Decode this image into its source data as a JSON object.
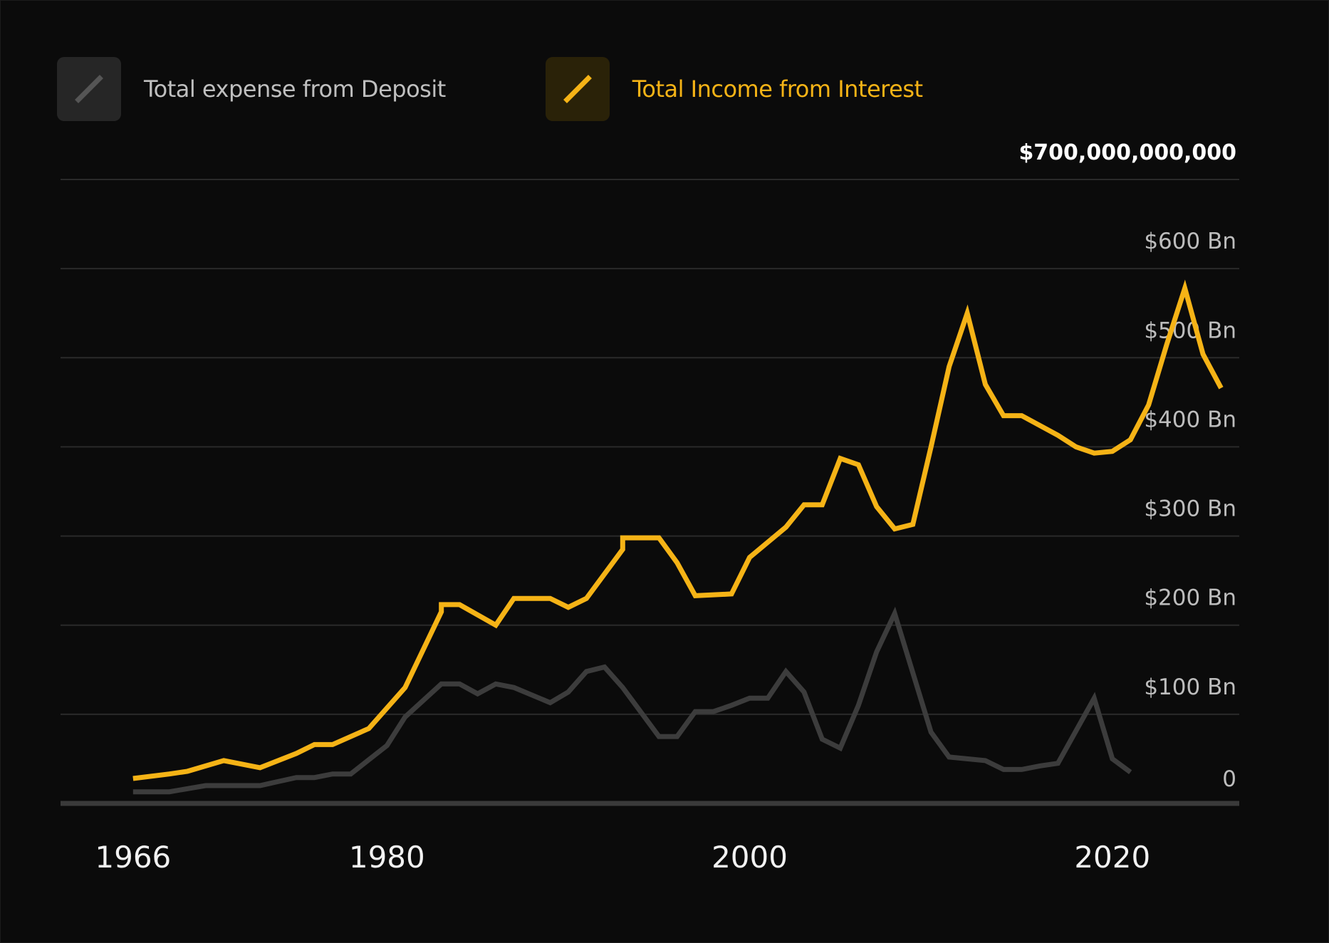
{
  "legend": {
    "expense_label": "Total expense from Deposit",
    "income_label": "Total Income from Interest"
  },
  "colors": {
    "background": "#0b0b0b",
    "expense": "#3c3c3c",
    "income": "#f5b316",
    "grid": "#2a2a2a",
    "baseline": "#3a3a3a"
  },
  "icons": {
    "expense_swatch": "diagonal-line-icon",
    "income_swatch": "diagonal-line-icon"
  },
  "chart_data": {
    "type": "line",
    "ylim": [
      0,
      700
    ],
    "xlim": [
      1962,
      2027
    ],
    "grid": true,
    "legend_position": "top-left",
    "y_axis_position": "right",
    "y_ticks": [
      {
        "value": 0,
        "label": "0"
      },
      {
        "value": 100,
        "label": "$100 Bn"
      },
      {
        "value": 200,
        "label": "$200 Bn"
      },
      {
        "value": 300,
        "label": "$300 Bn"
      },
      {
        "value": 400,
        "label": "$400 Bn"
      },
      {
        "value": 500,
        "label": "$500 Bn"
      },
      {
        "value": 600,
        "label": "$600 Bn"
      },
      {
        "value": 700,
        "label": "$700,000,000,000"
      }
    ],
    "x_ticks": [
      {
        "value": 1966,
        "label": "1966"
      },
      {
        "value": 1980,
        "label": "1980"
      },
      {
        "value": 2000,
        "label": "2000"
      },
      {
        "value": 2020,
        "label": "2020"
      }
    ],
    "series": [
      {
        "name": "Total Income from Interest",
        "color": "#f5b316",
        "points": [
          [
            1966,
            28
          ],
          [
            1968,
            33
          ],
          [
            1969,
            36
          ],
          [
            1971,
            48
          ],
          [
            1973,
            40
          ],
          [
            1975,
            56
          ],
          [
            1976,
            66
          ],
          [
            1977,
            66
          ],
          [
            1979,
            84
          ],
          [
            1981,
            130
          ],
          [
            1983,
            215
          ],
          [
            1983,
            223
          ],
          [
            1984,
            223
          ],
          [
            1986,
            200
          ],
          [
            1987,
            230
          ],
          [
            1989,
            230
          ],
          [
            1990,
            220
          ],
          [
            1991,
            230
          ],
          [
            1993,
            285
          ],
          [
            1993,
            298
          ],
          [
            1995,
            298
          ],
          [
            1996,
            270
          ],
          [
            1997,
            233
          ],
          [
            1999,
            235
          ],
          [
            2000,
            276
          ],
          [
            2002,
            310
          ],
          [
            2003,
            335
          ],
          [
            2004,
            335
          ],
          [
            2005,
            387
          ],
          [
            2006,
            380
          ],
          [
            2007,
            333
          ],
          [
            2008,
            308
          ],
          [
            2009,
            313
          ],
          [
            2010,
            400
          ],
          [
            2011,
            490
          ],
          [
            2012,
            550
          ],
          [
            2013,
            470
          ],
          [
            2014,
            435
          ],
          [
            2015,
            435
          ],
          [
            2017,
            413
          ],
          [
            2018,
            400
          ],
          [
            2019,
            393
          ],
          [
            2020,
            395
          ],
          [
            2021,
            408
          ],
          [
            2022,
            447
          ],
          [
            2023,
            515
          ],
          [
            2024,
            578
          ],
          [
            2025,
            504
          ],
          [
            2026,
            466
          ]
        ]
      },
      {
        "name": "Total expense from Deposit",
        "color": "#3c3c3c",
        "points": [
          [
            1966,
            13
          ],
          [
            1968,
            13
          ],
          [
            1970,
            20
          ],
          [
            1972,
            20
          ],
          [
            1973,
            20
          ],
          [
            1975,
            29
          ],
          [
            1976,
            29
          ],
          [
            1977,
            33
          ],
          [
            1978,
            33
          ],
          [
            1980,
            65
          ],
          [
            1981,
            97
          ],
          [
            1983,
            134
          ],
          [
            1984,
            134
          ],
          [
            1985,
            123
          ],
          [
            1986,
            134
          ],
          [
            1987,
            130
          ],
          [
            1989,
            113
          ],
          [
            1990,
            125
          ],
          [
            1991,
            148
          ],
          [
            1992,
            153
          ],
          [
            1993,
            130
          ],
          [
            1995,
            75
          ],
          [
            1996,
            75
          ],
          [
            1997,
            103
          ],
          [
            1998,
            103
          ],
          [
            1999,
            110
          ],
          [
            2000,
            118
          ],
          [
            2001,
            118
          ],
          [
            2002,
            148
          ],
          [
            2003,
            125
          ],
          [
            2004,
            72
          ],
          [
            2005,
            62
          ],
          [
            2006,
            110
          ],
          [
            2007,
            170
          ],
          [
            2008,
            213
          ],
          [
            2010,
            80
          ],
          [
            2011,
            52
          ],
          [
            2013,
            48
          ],
          [
            2014,
            38
          ],
          [
            2015,
            38
          ],
          [
            2016,
            42
          ],
          [
            2017,
            45
          ],
          [
            2019,
            118
          ],
          [
            2020,
            50
          ],
          [
            2021,
            35
          ]
        ]
      }
    ]
  }
}
